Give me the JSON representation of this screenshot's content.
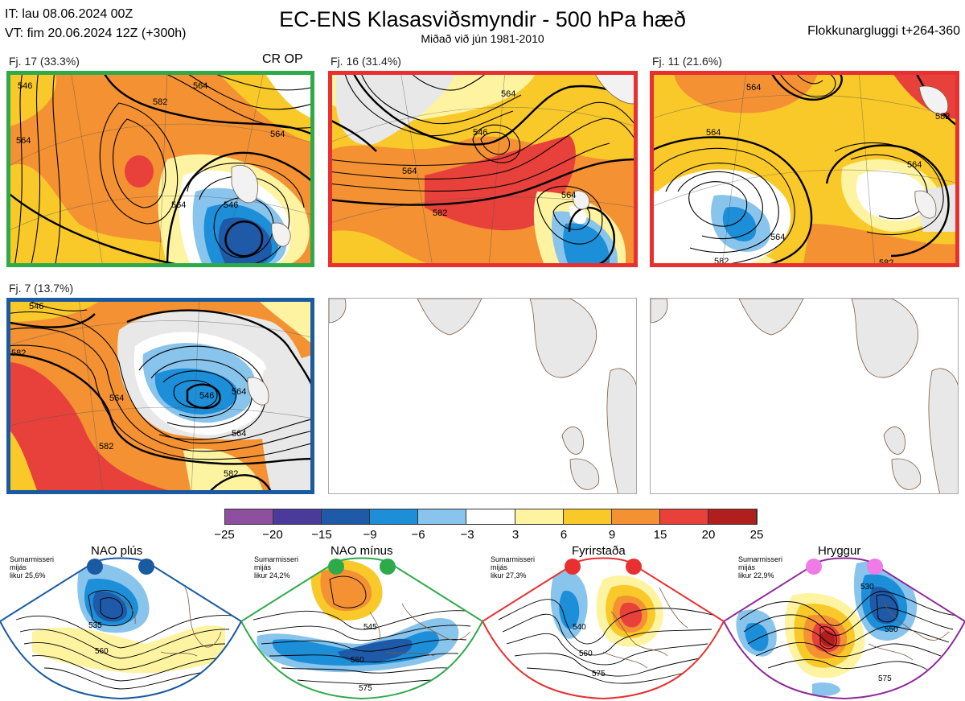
{
  "header": {
    "it_line": "IT: lau 08.06.2024 00Z",
    "vt_line": "VT: fim 20.06.2024 12Z  (+300h)",
    "title": "EC-ENS Klasasviðsmyndir - 500 hPa hæð",
    "subtitle": "Miðað við jún 1981-2010",
    "window": "Flokkunargluggi t+264-360"
  },
  "clusters": [
    {
      "label": "Fj. 17 (33.3%)",
      "extra": "CR OP",
      "border": "#2eaa4a",
      "contours": [
        "546",
        "564",
        "582",
        "564",
        "564",
        "546",
        "564"
      ]
    },
    {
      "label": "Fj. 16 (31.4%)",
      "extra": "",
      "border": "#e83030",
      "contours": [
        "546",
        "564",
        "564",
        "582",
        "564"
      ]
    },
    {
      "label": "Fj. 11 (21.6%)",
      "extra": "",
      "border": "#e83030",
      "contours": [
        "564",
        "564",
        "564",
        "564",
        "582",
        "582",
        "582"
      ]
    },
    {
      "label": "Fj. 7 (13.7%)",
      "extra": "",
      "border": "#1a5aa0",
      "contours": [
        "546",
        "582",
        "564",
        "546",
        "564",
        "582",
        "582",
        "564"
      ]
    }
  ],
  "colorbar": {
    "ticks": [
      "−25",
      "−20",
      "−15",
      "−9",
      "−6",
      "−3",
      "3",
      "6",
      "9",
      "15",
      "20",
      "25"
    ],
    "colors": [
      "#8f4f9f",
      "#4a3a9a",
      "#1f5aa8",
      "#1c8fd8",
      "#88c4ec",
      "#ffffff",
      "#fdf3a0",
      "#f9c92a",
      "#f39133",
      "#e8403a",
      "#b01e1e"
    ]
  },
  "regimes": [
    {
      "title": "NAO plús",
      "note": [
        "Sumarmisseri",
        "mijás",
        "likur 25,6%"
      ],
      "dot": "#1a5aa0",
      "border": "#1a5aa0",
      "labels": [
        "535",
        "560"
      ]
    },
    {
      "title": "NAO mínus",
      "note": [
        "Sumarmisseri",
        "mijás",
        "likur 24,2%"
      ],
      "dot": "#2eaa4a",
      "border": "#2eaa4a",
      "labels": [
        "545",
        "560",
        "575"
      ]
    },
    {
      "title": "Fyrirstaða",
      "note": [
        "Sumarmisseri",
        "mijás",
        "likur 27,3%"
      ],
      "dot": "#e83030",
      "border": "#e83030",
      "labels": [
        "540",
        "560",
        "575"
      ]
    },
    {
      "title": "Hryggur",
      "note": [
        "Sumarmisseri",
        "mijás",
        "likur 22,9%"
      ],
      "dot": "#ee7be6",
      "border": "#8e2a9a",
      "labels": [
        "530",
        "550",
        "575"
      ]
    }
  ]
}
